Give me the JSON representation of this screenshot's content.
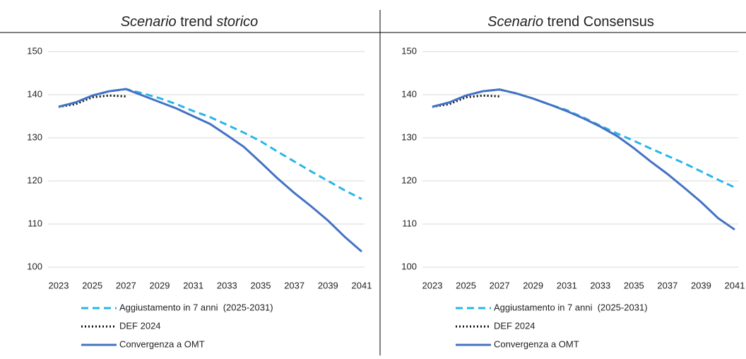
{
  "chart_data": [
    {
      "type": "line",
      "title": [
        {
          "text": "Scenario",
          "italic": true
        },
        {
          "text": " trend ",
          "italic": false
        },
        {
          "text": "storico",
          "italic": true
        }
      ],
      "x": [
        2023,
        2024,
        2025,
        2026,
        2027,
        2028,
        2029,
        2030,
        2031,
        2032,
        2033,
        2034,
        2035,
        2036,
        2037,
        2038,
        2039,
        2040,
        2041
      ],
      "xlim": [
        2023,
        2041
      ],
      "xticks": [
        2023,
        2025,
        2027,
        2029,
        2031,
        2033,
        2035,
        2037,
        2039,
        2041
      ],
      "ylim": [
        100,
        150
      ],
      "yticks": [
        100,
        110,
        120,
        130,
        140,
        150
      ],
      "grid": true,
      "series": [
        {
          "name": "Aggiustamento in 7 anni  (2025-2031)",
          "color": "#29b6ea",
          "dash": "dashed",
          "values": [
            137.2,
            138.2,
            139.8,
            140.8,
            141.3,
            140.3,
            139.2,
            137.8,
            136.2,
            134.8,
            133,
            131.2,
            129.2,
            126.8,
            124.5,
            122.2,
            120,
            117.8,
            115.8
          ]
        },
        {
          "name": "DEF 2024",
          "color": "#111111",
          "dash": "dotted",
          "values": [
            137.2,
            137.8,
            139.4,
            139.8,
            139.6,
            null,
            null,
            null,
            null,
            null,
            null,
            null,
            null,
            null,
            null,
            null,
            null,
            null,
            null
          ]
        },
        {
          "name": "Convergenza a OMT",
          "color": "#4472c4",
          "dash": "solid",
          "values": [
            137.2,
            138.2,
            139.8,
            140.8,
            141.3,
            139.8,
            138.3,
            136.8,
            135,
            133.2,
            130.6,
            127.9,
            124.3,
            120.6,
            117.2,
            114.1,
            110.8,
            107,
            103.6
          ]
        }
      ]
    },
    {
      "type": "line",
      "title": [
        {
          "text": "Scenario",
          "italic": true
        },
        {
          "text": " trend Consensus",
          "italic": false
        }
      ],
      "x": [
        2023,
        2024,
        2025,
        2026,
        2027,
        2028,
        2029,
        2030,
        2031,
        2032,
        2033,
        2034,
        2035,
        2036,
        2037,
        2038,
        2039,
        2040,
        2041
      ],
      "xlim": [
        2023,
        2041
      ],
      "xticks": [
        2023,
        2025,
        2027,
        2029,
        2031,
        2033,
        2035,
        2037,
        2039,
        2041
      ],
      "ylim": [
        100,
        150
      ],
      "yticks": [
        100,
        110,
        120,
        130,
        140,
        150
      ],
      "grid": true,
      "series": [
        {
          "name": "Aggiustamento in 7 anni  (2025-2031)",
          "color": "#29b6ea",
          "dash": "dashed",
          "values": [
            137.2,
            138.2,
            139.8,
            140.8,
            141.2,
            140.3,
            139.1,
            137.7,
            136.4,
            134.7,
            132.8,
            131,
            129.3,
            127.5,
            125.8,
            124.1,
            122.2,
            120.3,
            118.5
          ]
        },
        {
          "name": "DEF 2024",
          "color": "#111111",
          "dash": "dotted",
          "values": [
            137.2,
            137.8,
            139.4,
            139.8,
            139.6,
            null,
            null,
            null,
            null,
            null,
            null,
            null,
            null,
            null,
            null,
            null,
            null,
            null,
            null
          ]
        },
        {
          "name": "Convergenza a OMT",
          "color": "#4472c4",
          "dash": "solid",
          "values": [
            137.2,
            138.2,
            139.8,
            140.8,
            141.2,
            140.3,
            139.1,
            137.7,
            136.2,
            134.5,
            132.6,
            130.4,
            127.6,
            124.5,
            121.6,
            118.4,
            115.1,
            111.4,
            108.7
          ]
        }
      ]
    }
  ]
}
